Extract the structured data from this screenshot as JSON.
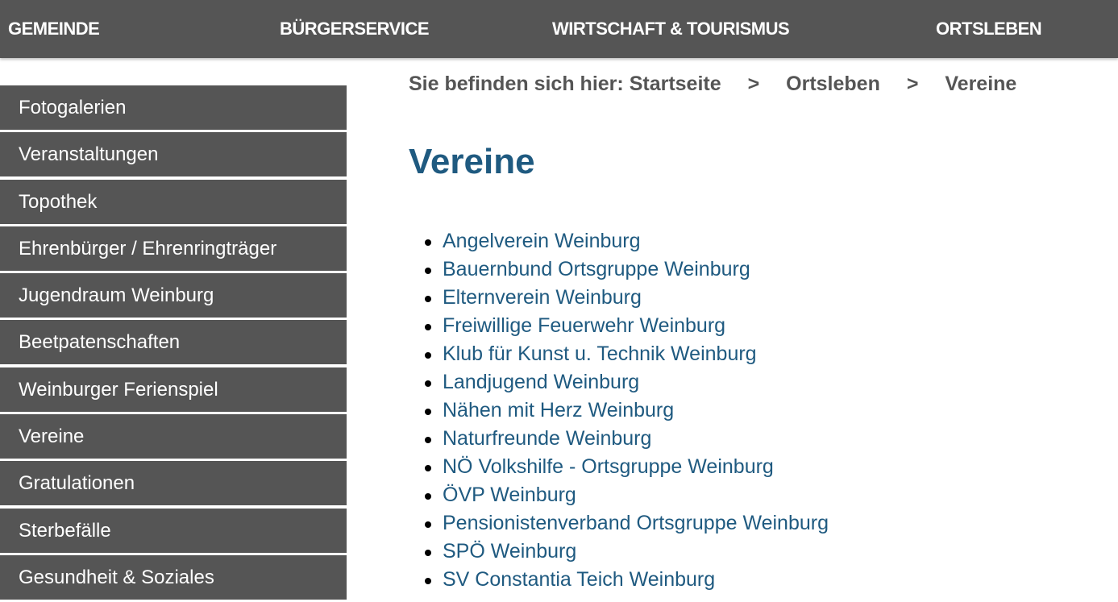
{
  "topnav": [
    "GEMEINDE",
    "BÜRGERSERVICE",
    "WIRTSCHAFT & TOURISMUS",
    "ORTSLEBEN"
  ],
  "sidebar": [
    "Fotogalerien",
    "Veranstaltungen",
    "Topothek",
    "Ehrenbürger / Ehrenringträger",
    "Jugendraum Weinburg",
    "Beetpatenschaften",
    "Weinburger Ferienspiel",
    "Vereine",
    "Gratulationen",
    "Sterbefälle",
    "Gesundheit & Soziales"
  ],
  "breadcrumb": {
    "prefix": "Sie befinden sich hier:",
    "items": [
      "Startseite",
      "Ortsleben",
      "Vereine"
    ],
    "separator": ">"
  },
  "page_title": "Vereine",
  "vereine": [
    "Angelverein Weinburg",
    "Bauernbund Ortsgruppe Weinburg",
    "Elternverein Weinburg",
    "Freiwillige Feuerwehr Weinburg",
    "Klub für Kunst u. Technik Weinburg",
    "Landjugend Weinburg",
    "Nähen mit Herz Weinburg",
    "Naturfreunde Weinburg",
    "NÖ Volkshilfe - Ortsgruppe Weinburg",
    "ÖVP Weinburg",
    "Pensionistenverband Ortsgruppe Weinburg",
    "SPÖ Weinburg",
    "SV Constantia Teich Weinburg"
  ],
  "colors": {
    "nav_bg": "#555555",
    "link": "#1f5a80"
  }
}
